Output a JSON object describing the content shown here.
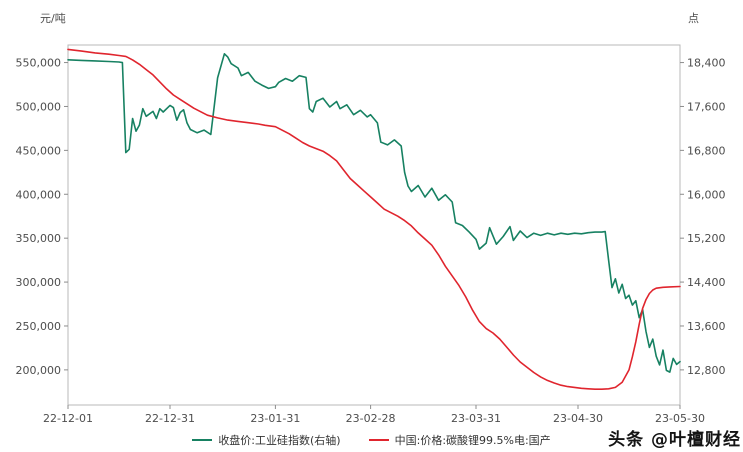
{
  "watermark": "头条 @叶檀财经",
  "chart_data": {
    "type": "line",
    "title": "",
    "grid": false,
    "legend_position": "bottom",
    "x_range": [
      0,
      180
    ],
    "x_ticks": [
      {
        "x": 0,
        "label": "22-12-01"
      },
      {
        "x": 30,
        "label": "22-12-31"
      },
      {
        "x": 61,
        "label": "23-01-31"
      },
      {
        "x": 89,
        "label": "23-02-28"
      },
      {
        "x": 120,
        "label": "23-03-31"
      },
      {
        "x": 150,
        "label": "23-04-30"
      },
      {
        "x": 180,
        "label": "23-05-30"
      }
    ],
    "left_axis": {
      "unit": "元/吨",
      "ticks": [
        550000,
        500000,
        450000,
        400000,
        350000,
        300000,
        250000,
        200000
      ],
      "plot_range": [
        160000,
        570000
      ]
    },
    "right_axis": {
      "unit": "点",
      "ticks": [
        18400,
        17600,
        16800,
        16000,
        15200,
        14400,
        13600,
        12800
      ],
      "plot_range": [
        12160,
        18720
      ]
    },
    "series": [
      {
        "name": "收盘价:工业硅指数(右轴)",
        "axis": "right",
        "color": "#178162",
        "data": [
          [
            0,
            18450
          ],
          [
            4,
            18440
          ],
          [
            8,
            18430
          ],
          [
            12,
            18420
          ],
          [
            15,
            18410
          ],
          [
            16,
            18400
          ],
          [
            17,
            16760
          ],
          [
            18,
            16820
          ],
          [
            19,
            17380
          ],
          [
            20,
            17150
          ],
          [
            21,
            17260
          ],
          [
            22,
            17560
          ],
          [
            23,
            17420
          ],
          [
            25,
            17510
          ],
          [
            26,
            17380
          ],
          [
            27,
            17560
          ],
          [
            28,
            17500
          ],
          [
            30,
            17620
          ],
          [
            31,
            17580
          ],
          [
            32,
            17350
          ],
          [
            33,
            17490
          ],
          [
            34,
            17540
          ],
          [
            35,
            17300
          ],
          [
            36,
            17180
          ],
          [
            38,
            17120
          ],
          [
            40,
            17170
          ],
          [
            42,
            17090
          ],
          [
            43,
            17600
          ],
          [
            44,
            18120
          ],
          [
            46,
            18560
          ],
          [
            47,
            18500
          ],
          [
            48,
            18380
          ],
          [
            50,
            18300
          ],
          [
            51,
            18160
          ],
          [
            53,
            18220
          ],
          [
            55,
            18060
          ],
          [
            57,
            17990
          ],
          [
            59,
            17930
          ],
          [
            61,
            17960
          ],
          [
            62,
            18040
          ],
          [
            64,
            18110
          ],
          [
            66,
            18060
          ],
          [
            68,
            18160
          ],
          [
            70,
            18130
          ],
          [
            71,
            17560
          ],
          [
            72,
            17500
          ],
          [
            73,
            17690
          ],
          [
            75,
            17750
          ],
          [
            77,
            17590
          ],
          [
            79,
            17690
          ],
          [
            80,
            17560
          ],
          [
            82,
            17630
          ],
          [
            84,
            17450
          ],
          [
            86,
            17530
          ],
          [
            88,
            17410
          ],
          [
            89,
            17450
          ],
          [
            91,
            17300
          ],
          [
            92,
            16950
          ],
          [
            94,
            16900
          ],
          [
            96,
            16990
          ],
          [
            98,
            16880
          ],
          [
            99,
            16400
          ],
          [
            100,
            16150
          ],
          [
            101,
            16050
          ],
          [
            103,
            16160
          ],
          [
            105,
            15950
          ],
          [
            107,
            16110
          ],
          [
            109,
            15890
          ],
          [
            111,
            15990
          ],
          [
            113,
            15860
          ],
          [
            114,
            15480
          ],
          [
            116,
            15430
          ],
          [
            118,
            15310
          ],
          [
            120,
            15180
          ],
          [
            121,
            15000
          ],
          [
            123,
            15110
          ],
          [
            124,
            15390
          ],
          [
            126,
            15090
          ],
          [
            128,
            15230
          ],
          [
            130,
            15410
          ],
          [
            131,
            15160
          ],
          [
            133,
            15330
          ],
          [
            135,
            15210
          ],
          [
            137,
            15290
          ],
          [
            139,
            15250
          ],
          [
            141,
            15290
          ],
          [
            143,
            15260
          ],
          [
            145,
            15290
          ],
          [
            147,
            15270
          ],
          [
            149,
            15290
          ],
          [
            151,
            15280
          ],
          [
            153,
            15300
          ],
          [
            155,
            15310
          ],
          [
            157,
            15310
          ],
          [
            158,
            15320
          ],
          [
            159,
            14800
          ],
          [
            160,
            14300
          ],
          [
            161,
            14460
          ],
          [
            162,
            14200
          ],
          [
            163,
            14360
          ],
          [
            164,
            14100
          ],
          [
            165,
            14160
          ],
          [
            166,
            13980
          ],
          [
            167,
            14060
          ],
          [
            168,
            13750
          ],
          [
            169,
            13900
          ],
          [
            170,
            13500
          ],
          [
            171,
            13210
          ],
          [
            172,
            13360
          ],
          [
            173,
            13050
          ],
          [
            174,
            12890
          ],
          [
            175,
            13160
          ],
          [
            176,
            12790
          ],
          [
            177,
            12760
          ],
          [
            178,
            13010
          ],
          [
            179,
            12900
          ],
          [
            180,
            12950
          ]
        ]
      },
      {
        "name": "中国:价格:碳酸锂99.5%电:国产",
        "axis": "left",
        "color": "#e0252e",
        "data": [
          [
            0,
            565000
          ],
          [
            4,
            563000
          ],
          [
            8,
            561000
          ],
          [
            12,
            559500
          ],
          [
            15,
            558000
          ],
          [
            17,
            557000
          ],
          [
            19,
            553000
          ],
          [
            21,
            548000
          ],
          [
            23,
            542000
          ],
          [
            25,
            536000
          ],
          [
            27,
            528000
          ],
          [
            29,
            520000
          ],
          [
            31,
            513000
          ],
          [
            33,
            508000
          ],
          [
            35,
            503000
          ],
          [
            37,
            498000
          ],
          [
            39,
            494000
          ],
          [
            41,
            490000
          ],
          [
            44,
            487000
          ],
          [
            47,
            484500
          ],
          [
            50,
            483000
          ],
          [
            53,
            481500
          ],
          [
            56,
            480000
          ],
          [
            58,
            478500
          ],
          [
            61,
            477000
          ],
          [
            63,
            473000
          ],
          [
            65,
            469000
          ],
          [
            67,
            464000
          ],
          [
            69,
            459000
          ],
          [
            71,
            455000
          ],
          [
            73,
            452000
          ],
          [
            75,
            449000
          ],
          [
            77,
            444000
          ],
          [
            79,
            438000
          ],
          [
            81,
            428000
          ],
          [
            83,
            418000
          ],
          [
            85,
            411000
          ],
          [
            87,
            404000
          ],
          [
            89,
            397000
          ],
          [
            91,
            390000
          ],
          [
            93,
            383000
          ],
          [
            95,
            379000
          ],
          [
            97,
            375000
          ],
          [
            99,
            370000
          ],
          [
            101,
            364000
          ],
          [
            103,
            356000
          ],
          [
            105,
            349000
          ],
          [
            107,
            342000
          ],
          [
            109,
            331000
          ],
          [
            111,
            318000
          ],
          [
            113,
            307000
          ],
          [
            115,
            296000
          ],
          [
            117,
            283000
          ],
          [
            119,
            268000
          ],
          [
            121,
            255000
          ],
          [
            123,
            247000
          ],
          [
            125,
            242000
          ],
          [
            127,
            235000
          ],
          [
            129,
            226000
          ],
          [
            131,
            217000
          ],
          [
            133,
            209000
          ],
          [
            135,
            203000
          ],
          [
            137,
            197000
          ],
          [
            139,
            192000
          ],
          [
            141,
            188000
          ],
          [
            143,
            185000
          ],
          [
            145,
            182500
          ],
          [
            147,
            181000
          ],
          [
            149,
            180000
          ],
          [
            151,
            179000
          ],
          [
            153,
            178500
          ],
          [
            155,
            178000
          ],
          [
            157,
            178000
          ],
          [
            159,
            178500
          ],
          [
            161,
            180000
          ],
          [
            163,
            186000
          ],
          [
            165,
            200000
          ],
          [
            166,
            215000
          ],
          [
            167,
            232000
          ],
          [
            168,
            252000
          ],
          [
            169,
            270000
          ],
          [
            170,
            280000
          ],
          [
            171,
            287000
          ],
          [
            172,
            291000
          ],
          [
            173,
            293000
          ],
          [
            175,
            294000
          ],
          [
            177,
            294500
          ],
          [
            180,
            295000
          ]
        ]
      }
    ]
  }
}
